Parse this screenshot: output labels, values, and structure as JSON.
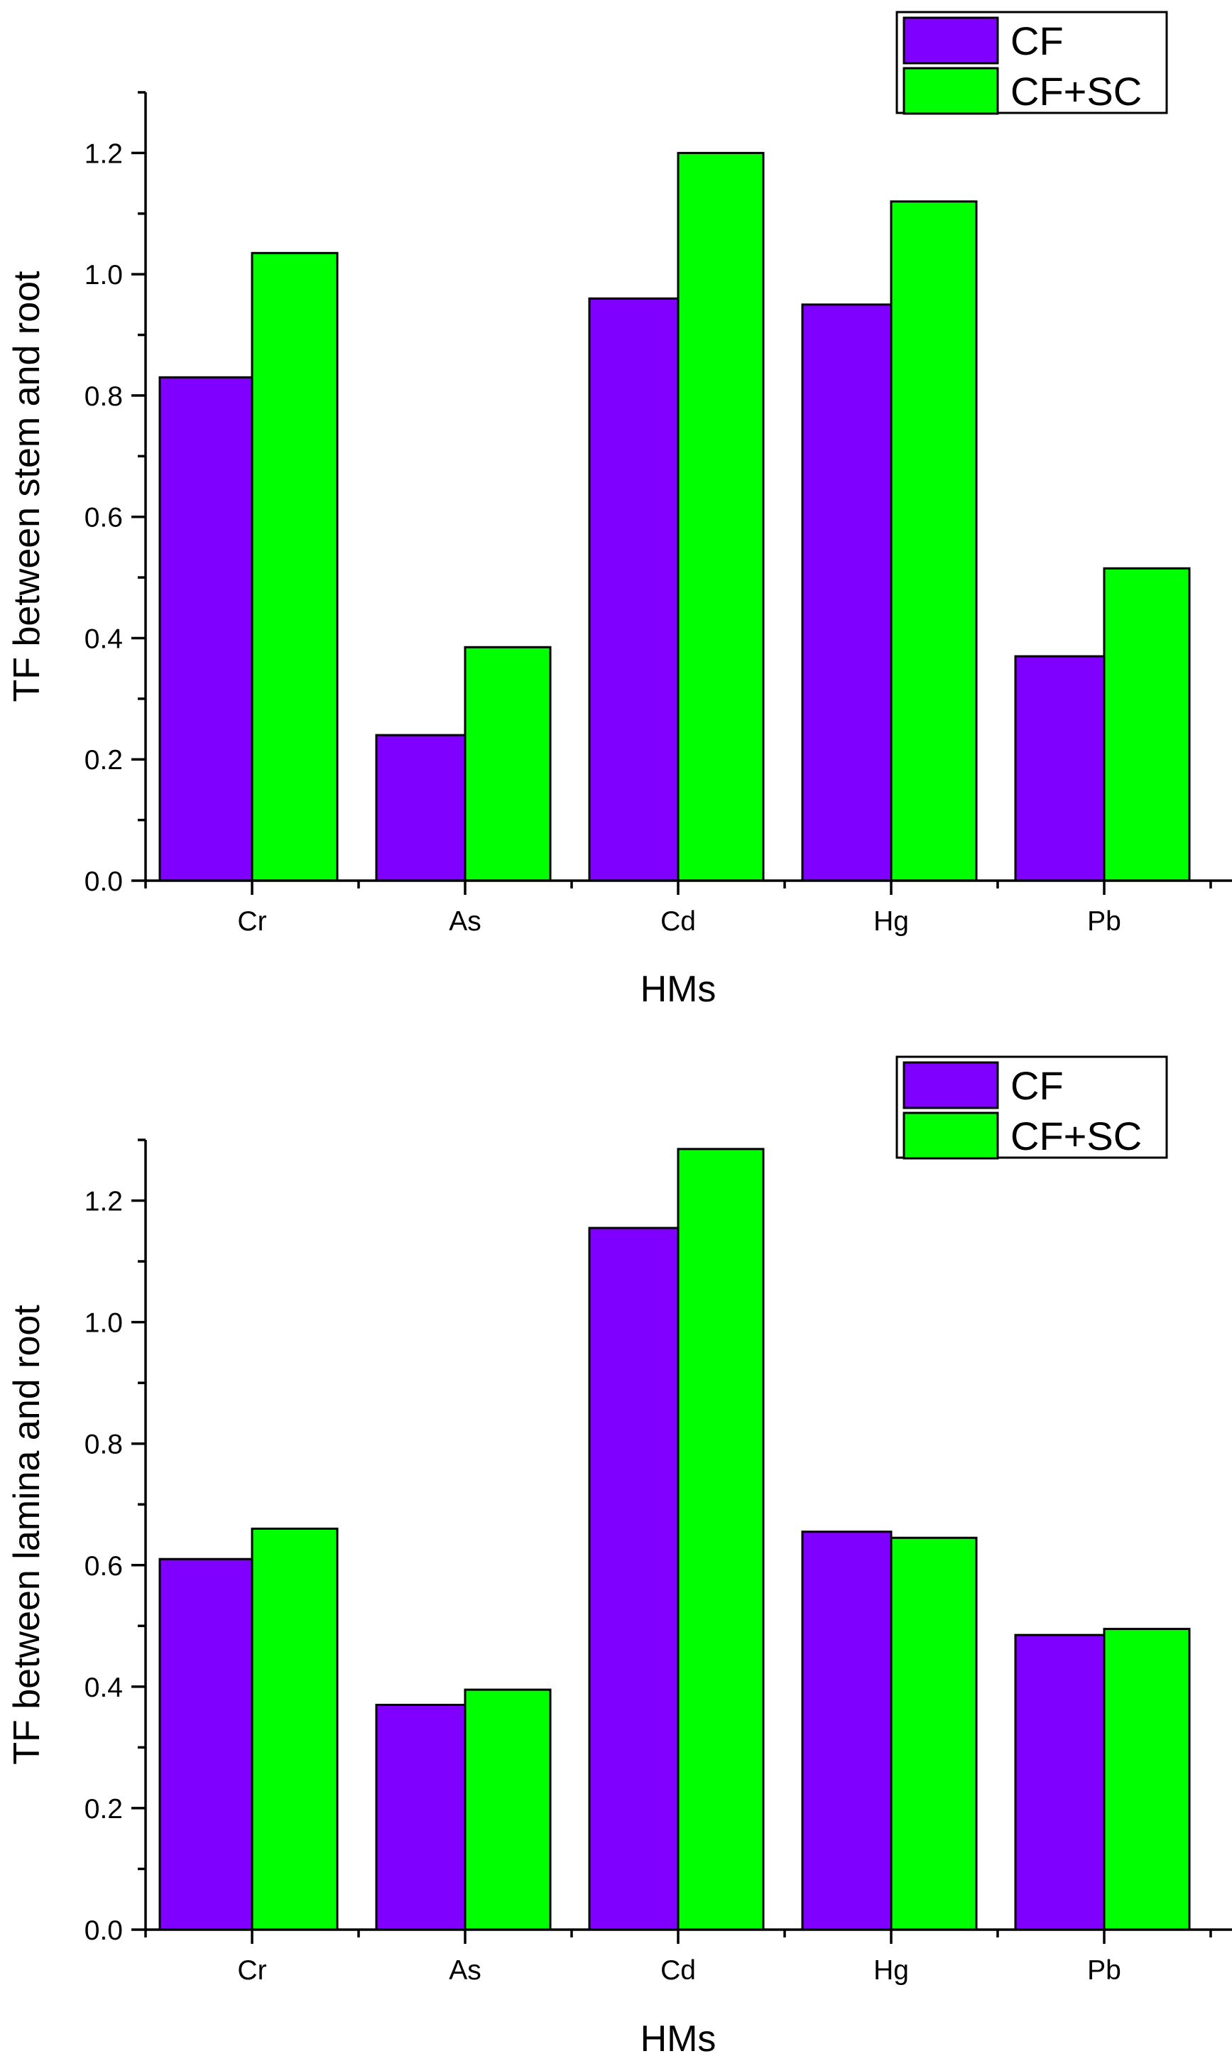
{
  "chart_data": [
    {
      "type": "bar",
      "categories": [
        "Cr",
        "As",
        "Cd",
        "Hg",
        "Pb"
      ],
      "series": [
        {
          "name": "CF",
          "color": "#7f00ff",
          "values": [
            0.83,
            0.24,
            0.96,
            0.95,
            0.37
          ]
        },
        {
          "name": "CF+SC",
          "color": "#00ff00",
          "values": [
            1.035,
            0.385,
            1.2,
            1.12,
            0.515
          ]
        }
      ],
      "xlabel": "HMs",
      "ylabel": "TF between stem and root",
      "ylim": [
        0,
        1.3
      ],
      "yticks": [
        "0.0",
        "0.2",
        "0.4",
        "0.6",
        "0.8",
        "1.0",
        "1.2"
      ],
      "legend": "top-right"
    },
    {
      "type": "bar",
      "categories": [
        "Cr",
        "As",
        "Cd",
        "Hg",
        "Pb"
      ],
      "series": [
        {
          "name": "CF",
          "color": "#7f00ff",
          "values": [
            0.61,
            0.37,
            1.155,
            0.655,
            0.485
          ]
        },
        {
          "name": "CF+SC",
          "color": "#00ff00",
          "values": [
            0.66,
            0.395,
            1.285,
            0.645,
            0.495
          ]
        }
      ],
      "xlabel": "HMs",
      "ylabel": "TF between lamina and root",
      "ylim": [
        0,
        1.3
      ],
      "yticks": [
        "0.0",
        "0.2",
        "0.4",
        "0.6",
        "0.8",
        "1.0",
        "1.2"
      ],
      "legend": "top-right"
    }
  ]
}
